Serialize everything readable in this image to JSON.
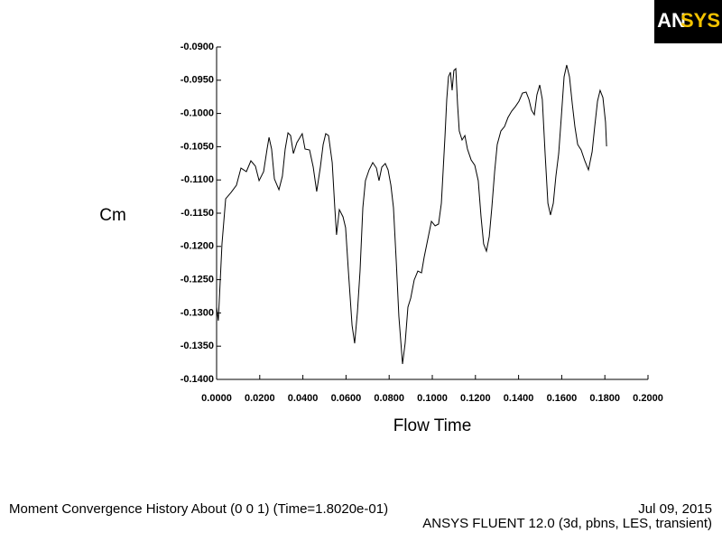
{
  "chart_data": {
    "type": "line",
    "logo": [
      "AN",
      "SYS"
    ],
    "ylabel": "Cm",
    "xlabel": "Flow Time",
    "footer_left": "Moment Convergence History About (0 0 1)  (Time=1.8020e-01)",
    "footer_date": "Jul 09, 2015",
    "footer_right": "ANSYS FLUENT 12.0 (3d, pbns, LES, transient)",
    "color": "#000000",
    "xlim": [
      0,
      0.2
    ],
    "ylim": [
      -0.14,
      -0.09
    ],
    "xticks": [
      {
        "value": 0,
        "label": "0.0000"
      },
      {
        "value": 0.02,
        "label": "0.0200"
      },
      {
        "value": 0.04,
        "label": "0.0400"
      },
      {
        "value": 0.06,
        "label": "0.0600"
      },
      {
        "value": 0.08,
        "label": "0.0800"
      },
      {
        "value": 0.1,
        "label": "0.1000"
      },
      {
        "value": 0.12,
        "label": "0.1200"
      },
      {
        "value": 0.14,
        "label": "0.1400"
      },
      {
        "value": 0.16,
        "label": "0.1600"
      },
      {
        "value": 0.18,
        "label": "0.1800"
      },
      {
        "value": 0.2,
        "label": "0.2000"
      }
    ],
    "yticks": [
      {
        "value": -0.09,
        "label": "-0.0900"
      },
      {
        "value": -0.095,
        "label": "-0.0950"
      },
      {
        "value": -0.1,
        "label": "-0.1000"
      },
      {
        "value": -0.105,
        "label": "-0.1050"
      },
      {
        "value": -0.11,
        "label": "-0.1100"
      },
      {
        "value": -0.115,
        "label": "-0.1150"
      },
      {
        "value": -0.12,
        "label": "-0.1200"
      },
      {
        "value": -0.125,
        "label": "-0.1250"
      },
      {
        "value": -0.13,
        "label": "-0.1300"
      },
      {
        "value": -0.135,
        "label": "-0.1350"
      },
      {
        "value": -0.14,
        "label": "-0.1400"
      }
    ],
    "x": [
      0,
      0.0008,
      0.0025,
      0.0042,
      0.0067,
      0.0092,
      0.0113,
      0.0138,
      0.0159,
      0.018,
      0.0197,
      0.0218,
      0.0234,
      0.0243,
      0.0255,
      0.0268,
      0.0289,
      0.0305,
      0.0318,
      0.0331,
      0.0343,
      0.0356,
      0.0372,
      0.0397,
      0.041,
      0.0431,
      0.0448,
      0.0464,
      0.0481,
      0.0494,
      0.0506,
      0.0519,
      0.0536,
      0.0548,
      0.0556,
      0.0569,
      0.0586,
      0.0598,
      0.0611,
      0.0628,
      0.064,
      0.0653,
      0.0665,
      0.0678,
      0.069,
      0.0707,
      0.0724,
      0.0741,
      0.0753,
      0.0766,
      0.0782,
      0.0795,
      0.0808,
      0.082,
      0.0833,
      0.0845,
      0.0862,
      0.0874,
      0.0887,
      0.09,
      0.0916,
      0.0933,
      0.095,
      0.0962,
      0.0979,
      0.0996,
      0.1013,
      0.1029,
      0.1042,
      0.105,
      0.1059,
      0.1067,
      0.1075,
      0.1084,
      0.1092,
      0.11,
      0.1109,
      0.1117,
      0.1125,
      0.1138,
      0.1151,
      0.1163,
      0.118,
      0.1197,
      0.1213,
      0.1226,
      0.1238,
      0.1251,
      0.1264,
      0.1276,
      0.1289,
      0.1301,
      0.1318,
      0.1335,
      0.1351,
      0.1368,
      0.1385,
      0.1402,
      0.1418,
      0.1435,
      0.1448,
      0.146,
      0.1473,
      0.1485,
      0.1498,
      0.151,
      0.1523,
      0.1536,
      0.1548,
      0.1561,
      0.1573,
      0.1586,
      0.1598,
      0.1611,
      0.1623,
      0.1636,
      0.1649,
      0.1661,
      0.1674,
      0.169,
      0.1707,
      0.1724,
      0.1741,
      0.1753,
      0.1766,
      0.1778,
      0.1791,
      0.1803,
      0.1808
    ],
    "values": [
      -0.12913,
      -0.13117,
      -0.11962,
      -0.11283,
      -0.11188,
      -0.11079,
      -0.10821,
      -0.10875,
      -0.10712,
      -0.10793,
      -0.11011,
      -0.10875,
      -0.10535,
      -0.10359,
      -0.10535,
      -0.10984,
      -0.11147,
      -0.10943,
      -0.10535,
      -0.10291,
      -0.10332,
      -0.10603,
      -0.1044,
      -0.10304,
      -0.10535,
      -0.10549,
      -0.10807,
      -0.11174,
      -0.10807,
      -0.10467,
      -0.10304,
      -0.10332,
      -0.10739,
      -0.11418,
      -0.11826,
      -0.11446,
      -0.11554,
      -0.11717,
      -0.1237,
      -0.13185,
      -0.13457,
      -0.12981,
      -0.1237,
      -0.11418,
      -0.11011,
      -0.10848,
      -0.10739,
      -0.10821,
      -0.11011,
      -0.10807,
      -0.10753,
      -0.10848,
      -0.11079,
      -0.11418,
      -0.12234,
      -0.13049,
      -0.13769,
      -0.13457,
      -0.12913,
      -0.12777,
      -0.12505,
      -0.1237,
      -0.12397,
      -0.12166,
      -0.11894,
      -0.11622,
      -0.1169,
      -0.11663,
      -0.11351,
      -0.10875,
      -0.10332,
      -0.09788,
      -0.09448,
      -0.0938,
      -0.09652,
      -0.09353,
      -0.09326,
      -0.09856,
      -0.10264,
      -0.10399,
      -0.10332,
      -0.10535,
      -0.10698,
      -0.1078,
      -0.11011,
      -0.11554,
      -0.11962,
      -0.12071,
      -0.11853,
      -0.11418,
      -0.10875,
      -0.10467,
      -0.10264,
      -0.10196,
      -0.1006,
      -0.09965,
      -0.09897,
      -0.09815,
      -0.09693,
      -0.09679,
      -0.09788,
      -0.09951,
      -0.10019,
      -0.0972,
      -0.09571,
      -0.09788,
      -0.10603,
      -0.11351,
      -0.11527,
      -0.11351,
      -0.10943,
      -0.10603,
      -0.1006,
      -0.09448,
      -0.09272,
      -0.09448,
      -0.09856,
      -0.10196,
      -0.10467,
      -0.10549,
      -0.10712,
      -0.10848,
      -0.10576,
      -0.10196,
      -0.09815,
      -0.09652,
      -0.09761,
      -0.10128,
      -0.10495
    ]
  }
}
